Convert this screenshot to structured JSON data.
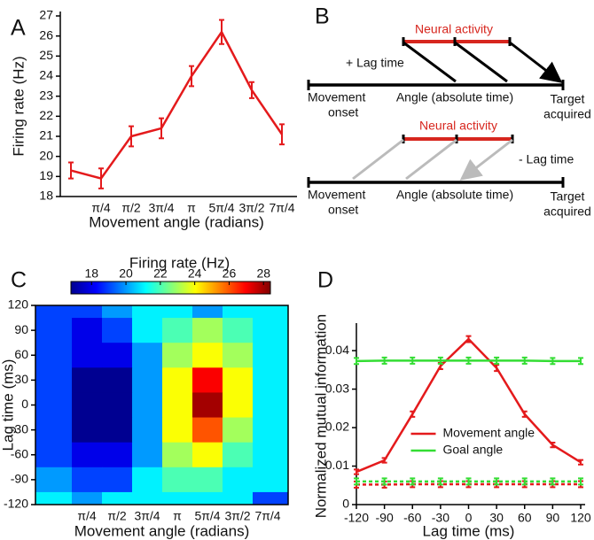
{
  "chart_data": [
    {
      "type": "line",
      "label": "A",
      "categories": [
        null,
        "π/4",
        "π/2",
        "3π/4",
        "π",
        "5π/4",
        "3π/2",
        "7π/4"
      ],
      "values": [
        19.3,
        18.9,
        21.0,
        21.4,
        24.0,
        26.2,
        23.3,
        21.1
      ],
      "errors": [
        0.4,
        0.5,
        0.5,
        0.5,
        0.5,
        0.6,
        0.4,
        0.5
      ],
      "color": "#e41a1c",
      "ylim": [
        18,
        27
      ],
      "yticks": [
        18,
        19,
        20,
        21,
        22,
        23,
        24,
        25,
        26,
        27
      ],
      "xlabel": "Movement angle (radians)",
      "ylabel": "Firing rate (Hz)"
    },
    {
      "type": "contour",
      "label": "C",
      "title": "Firing rate (Hz)",
      "colormap": "jet",
      "clim": [
        16.8,
        28.4
      ],
      "cticks": [
        18,
        20,
        22,
        24,
        26,
        28
      ],
      "categories": [
        null,
        "π/4",
        "π/2",
        "3π/4",
        "π",
        "5π/4",
        "3π/2",
        "7π/4"
      ],
      "y": [
        120,
        90,
        60,
        30,
        0,
        -30,
        -60,
        -90,
        -120
      ],
      "z": [
        [
          19,
          19,
          20,
          21,
          21,
          20,
          21,
          21
        ],
        [
          19,
          18,
          19,
          21,
          22,
          23,
          22,
          21
        ],
        [
          19,
          18,
          18,
          20,
          23,
          24,
          23,
          21
        ],
        [
          19,
          17,
          17,
          20,
          24,
          27,
          24,
          21
        ],
        [
          19,
          17,
          17,
          20,
          24,
          28,
          24,
          21
        ],
        [
          19,
          17,
          17,
          20,
          24,
          26,
          23,
          21
        ],
        [
          19,
          18,
          18,
          20,
          23,
          24,
          22,
          21
        ],
        [
          20,
          19,
          19,
          21,
          22,
          22,
          21,
          21
        ],
        [
          21,
          20,
          21,
          21,
          21,
          21,
          21,
          19
        ]
      ],
      "ylim": [
        -120,
        120
      ],
      "yticks": [
        -120,
        -90,
        -60,
        -30,
        0,
        30,
        60,
        90,
        120
      ],
      "xlabel": "Movement angle (radians)",
      "ylabel": "Lag time (ms)"
    },
    {
      "type": "line",
      "label": "D",
      "x": [
        -120,
        -90,
        -60,
        -30,
        0,
        30,
        60,
        90,
        120
      ],
      "series": [
        {
          "name": "Movement angle",
          "color": "#e41a1c",
          "values": [
            0.0085,
            0.0115,
            0.0235,
            0.036,
            0.043,
            0.0355,
            0.0235,
            0.0155,
            0.011
          ],
          "errors": [
            0.0006,
            0.0006,
            0.0007,
            0.0008,
            0.0008,
            0.0008,
            0.0007,
            0.0006,
            0.0006
          ]
        },
        {
          "name": "Goal angle",
          "color": "#33dd33",
          "values": [
            0.0373,
            0.0374,
            0.0374,
            0.0374,
            0.0374,
            0.0374,
            0.0374,
            0.0373,
            0.0373
          ],
          "errors": [
            0.0008,
            0.0008,
            0.0008,
            0.0008,
            0.0008,
            0.0008,
            0.0008,
            0.0008,
            0.0008
          ]
        },
        {
          "color": "#e41a1c",
          "dash": true,
          "values": [
            0.0052,
            0.0052,
            0.0053,
            0.0053,
            0.0053,
            0.0053,
            0.0053,
            0.0053,
            0.0053
          ],
          "errors": [
            0.0008,
            0.0008,
            0.0008,
            0.0008,
            0.0008,
            0.0008,
            0.0008,
            0.0008,
            0.0008
          ]
        },
        {
          "color": "#33dd33",
          "dash": true,
          "values": [
            0.006,
            0.006,
            0.006,
            0.006,
            0.006,
            0.006,
            0.006,
            0.006,
            0.006
          ],
          "errors": [
            0.0008,
            0.0008,
            0.0008,
            0.0008,
            0.0008,
            0.0008,
            0.0008,
            0.0008,
            0.0008
          ]
        }
      ],
      "xlim": [
        -120,
        120
      ],
      "xticks": [
        -120,
        -90,
        -60,
        -30,
        0,
        30,
        60,
        90,
        120
      ],
      "ylim": [
        0,
        0.046
      ],
      "yticks": [
        0,
        0.01,
        0.02,
        0.03,
        0.04
      ],
      "legend": "lower center",
      "xlabel": "Lag time (ms)",
      "ylabel": "Normalized mutual information"
    }
  ],
  "diagram": {
    "label": "B",
    "top": {
      "activity": "Neural activity",
      "lag": "+ Lag time",
      "onset": [
        "Movement",
        "onset"
      ],
      "axis": "Angle (absolute time)",
      "target": [
        "Target",
        "acquired"
      ]
    },
    "bottom": {
      "activity": "Neural activity",
      "lag": "- Lag time",
      "onset": [
        "Movement",
        "onset"
      ],
      "axis": "Angle (absolute time)",
      "target": [
        "Target",
        "acquired"
      ]
    }
  }
}
